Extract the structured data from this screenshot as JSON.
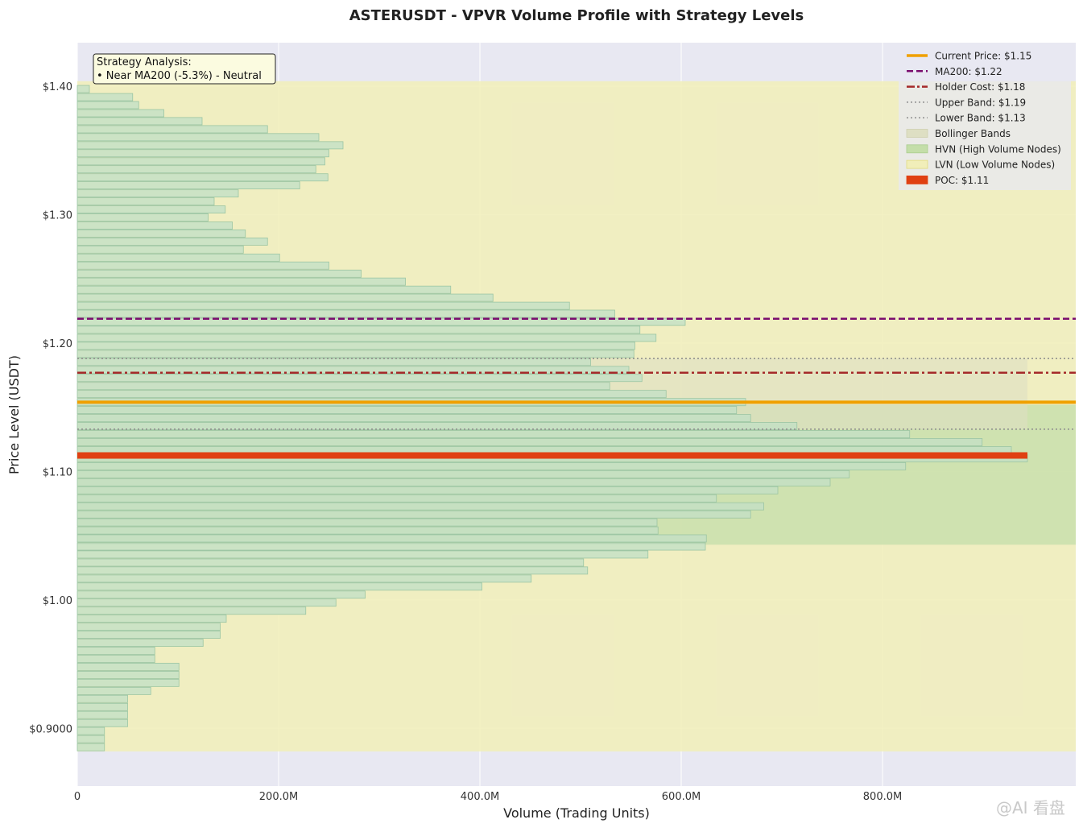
{
  "chart_data": {
    "type": "bar",
    "orientation": "horizontal",
    "title": "ASTERUSDT - VPVR Volume Profile with Strategy Levels",
    "xlabel": "Volume (Trading Units)",
    "ylabel": "Price Level (USDT)",
    "xlim": [
      0,
      992000000
    ],
    "ylim": [
      0.855,
      1.434
    ],
    "x_ticks": [
      {
        "value": 0,
        "label": "0"
      },
      {
        "value": 200000000,
        "label": "200.0M"
      },
      {
        "value": 400000000,
        "label": "400.0M"
      },
      {
        "value": 600000000,
        "label": "600.0M"
      },
      {
        "value": 800000000,
        "label": "800.0M"
      }
    ],
    "y_ticks": [
      {
        "value": 0.9,
        "label": "$0.9000"
      },
      {
        "value": 1.0,
        "label": "$1.00"
      },
      {
        "value": 1.1,
        "label": "$1.10"
      },
      {
        "value": 1.2,
        "label": "$1.20"
      },
      {
        "value": 1.3,
        "label": "$1.30"
      },
      {
        "value": 1.4,
        "label": "$1.40"
      }
    ],
    "grid": true,
    "legend_position": "top-right",
    "bar_height": 0.0063,
    "bars": [
      {
        "price": 0.8853,
        "volume": 27000000
      },
      {
        "price": 0.8916,
        "volume": 27000000
      },
      {
        "price": 0.8979,
        "volume": 27000000
      },
      {
        "price": 0.9041,
        "volume": 50000000
      },
      {
        "price": 0.9104,
        "volume": 50000000
      },
      {
        "price": 0.9166,
        "volume": 50000000
      },
      {
        "price": 0.9229,
        "volume": 50000000
      },
      {
        "price": 0.9291,
        "volume": 73000000
      },
      {
        "price": 0.9354,
        "volume": 101000000
      },
      {
        "price": 0.9416,
        "volume": 101000000
      },
      {
        "price": 0.9479,
        "volume": 101000000
      },
      {
        "price": 0.9541,
        "volume": 77000000
      },
      {
        "price": 0.9604,
        "volume": 77000000
      },
      {
        "price": 0.9666,
        "volume": 125000000
      },
      {
        "price": 0.9729,
        "volume": 142000000
      },
      {
        "price": 0.9791,
        "volume": 142000000
      },
      {
        "price": 0.9854,
        "volume": 148000000
      },
      {
        "price": 0.9916,
        "volume": 227000000
      },
      {
        "price": 0.9979,
        "volume": 257000000
      },
      {
        "price": 1.0041,
        "volume": 286000000
      },
      {
        "price": 1.0104,
        "volume": 402000000
      },
      {
        "price": 1.0166,
        "volume": 451000000
      },
      {
        "price": 1.0229,
        "volume": 507000000
      },
      {
        "price": 1.0291,
        "volume": 503000000
      },
      {
        "price": 1.0354,
        "volume": 567000000
      },
      {
        "price": 1.0416,
        "volume": 624000000
      },
      {
        "price": 1.0479,
        "volume": 625000000
      },
      {
        "price": 1.0541,
        "volume": 577000000
      },
      {
        "price": 1.0604,
        "volume": 576000000
      },
      {
        "price": 1.0666,
        "volume": 669000000
      },
      {
        "price": 1.0729,
        "volume": 682000000
      },
      {
        "price": 1.0791,
        "volume": 635000000
      },
      {
        "price": 1.0854,
        "volume": 696000000
      },
      {
        "price": 1.0916,
        "volume": 748000000
      },
      {
        "price": 1.0979,
        "volume": 767000000
      },
      {
        "price": 1.1041,
        "volume": 823000000
      },
      {
        "price": 1.1104,
        "volume": 944000000
      },
      {
        "price": 1.1166,
        "volume": 928000000
      },
      {
        "price": 1.1229,
        "volume": 899000000
      },
      {
        "price": 1.1291,
        "volume": 827000000
      },
      {
        "price": 1.1354,
        "volume": 715000000
      },
      {
        "price": 1.1416,
        "volume": 669000000
      },
      {
        "price": 1.1479,
        "volume": 655000000
      },
      {
        "price": 1.1541,
        "volume": 664000000
      },
      {
        "price": 1.1604,
        "volume": 585000000
      },
      {
        "price": 1.1666,
        "volume": 529000000
      },
      {
        "price": 1.1729,
        "volume": 561000000
      },
      {
        "price": 1.1791,
        "volume": 548000000
      },
      {
        "price": 1.1854,
        "volume": 510000000
      },
      {
        "price": 1.1916,
        "volume": 553000000
      },
      {
        "price": 1.1979,
        "volume": 554000000
      },
      {
        "price": 1.2041,
        "volume": 575000000
      },
      {
        "price": 1.2104,
        "volume": 559000000
      },
      {
        "price": 1.2166,
        "volume": 604000000
      },
      {
        "price": 1.2229,
        "volume": 534000000
      },
      {
        "price": 1.2291,
        "volume": 489000000
      },
      {
        "price": 1.2354,
        "volume": 413000000
      },
      {
        "price": 1.2416,
        "volume": 371000000
      },
      {
        "price": 1.2479,
        "volume": 326000000
      },
      {
        "price": 1.2541,
        "volume": 282000000
      },
      {
        "price": 1.2604,
        "volume": 250000000
      },
      {
        "price": 1.2666,
        "volume": 201000000
      },
      {
        "price": 1.2729,
        "volume": 165000000
      },
      {
        "price": 1.2791,
        "volume": 189000000
      },
      {
        "price": 1.2854,
        "volume": 167000000
      },
      {
        "price": 1.2916,
        "volume": 154000000
      },
      {
        "price": 1.2979,
        "volume": 130000000
      },
      {
        "price": 1.3041,
        "volume": 147000000
      },
      {
        "price": 1.3104,
        "volume": 136000000
      },
      {
        "price": 1.3166,
        "volume": 160000000
      },
      {
        "price": 1.3229,
        "volume": 221000000
      },
      {
        "price": 1.3291,
        "volume": 249000000
      },
      {
        "price": 1.3354,
        "volume": 237000000
      },
      {
        "price": 1.3416,
        "volume": 246000000
      },
      {
        "price": 1.3479,
        "volume": 250000000
      },
      {
        "price": 1.3541,
        "volume": 264000000
      },
      {
        "price": 1.3604,
        "volume": 240000000
      },
      {
        "price": 1.3666,
        "volume": 189000000
      },
      {
        "price": 1.3729,
        "volume": 124000000
      },
      {
        "price": 1.3791,
        "volume": 86000000
      },
      {
        "price": 1.3854,
        "volume": 61000000
      },
      {
        "price": 1.3916,
        "volume": 55000000
      },
      {
        "price": 1.3979,
        "volume": 12000000
      }
    ],
    "levels": {
      "current_price": 1.154,
      "ma200": 1.219,
      "holder_cost": 1.177,
      "upper_band": 1.188,
      "lower_band": 1.133,
      "poc": 1.1125,
      "poc_volume": 944000000,
      "bollinger_volume_extent": 944000000
    },
    "zones": {
      "lvn": {
        "from": 0.882,
        "to": 1.404
      },
      "hvn": {
        "from": 1.043,
        "to": 1.152
      }
    },
    "annotation": {
      "lines": [
        "Strategy Analysis:",
        "• Near MA200 (-5.3%) - Neutral"
      ]
    },
    "legend": [
      {
        "label": "Current Price: $1.15",
        "kind": "line",
        "style": "solid"
      },
      {
        "label": "MA200: $1.22",
        "kind": "line",
        "style": "dashed"
      },
      {
        "label": "Holder Cost: $1.18",
        "kind": "line",
        "style": "dashdot"
      },
      {
        "label": "Upper Band: $1.19",
        "kind": "line",
        "style": "dotted"
      },
      {
        "label": "Lower Band: $1.13",
        "kind": "line",
        "style": "dotted"
      },
      {
        "label": "Bollinger Bands",
        "kind": "patch",
        "style": "bollinger"
      },
      {
        "label": "HVN (High Volume Nodes)",
        "kind": "patch",
        "style": "hvn"
      },
      {
        "label": "LVN (Low Volume Nodes)",
        "kind": "patch",
        "style": "lvn"
      },
      {
        "label": "POC: $1.11",
        "kind": "patch",
        "style": "poc"
      }
    ],
    "colors": {
      "axes_bg": "#e8e8f2",
      "lvn": "#f1eeb9",
      "hvn": "#c4dea9",
      "bollinger": "#dedfc3",
      "bar_fill": "#c3e0c6",
      "bar_edge": "#9bc5a3",
      "current_price": "#f0a000",
      "ma200": "#7b0d6f",
      "holder_cost": "#a52a2a",
      "bands": "#8c8c8c",
      "poc": "#e04012",
      "annotation_bg": "#fbfbe0"
    }
  },
  "watermark": "@AI 看盘"
}
